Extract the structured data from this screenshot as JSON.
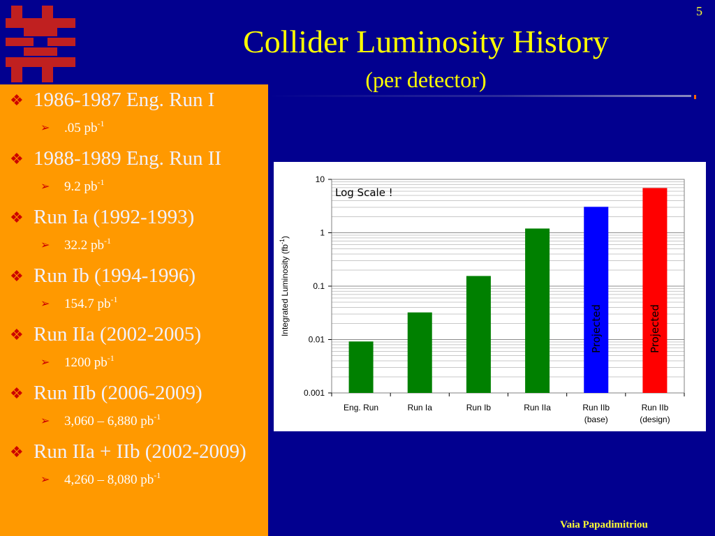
{
  "slide": {
    "number": "5",
    "title": "Collider Luminosity History",
    "subtitle": "(per detector)",
    "author": "Vaia Papadimitriou"
  },
  "colors": {
    "background": "#02008f",
    "panel": "#ff9900",
    "title": "#ffff00",
    "bullet": "#cc0000",
    "bar_green": "#008000",
    "bar_blue": "#0000ff",
    "bar_red": "#ff0000"
  },
  "bullets": [
    {
      "label": "1986-1987 Eng. Run I",
      "value": ".05 pb",
      "unit_sup": "-1"
    },
    {
      "label": "1988-1989 Eng. Run II",
      "value": "9.2 pb",
      "unit_sup": "-1"
    },
    {
      "label": "Run Ia (1992-1993)",
      "value": "32.2 pb",
      "unit_sup": "-1"
    },
    {
      "label": "Run Ib (1994-1996)",
      "value": "154.7 pb",
      "unit_sup": "-1"
    },
    {
      "label": "Run IIa (2002-2005)",
      "value": "1200 pb",
      "unit_sup": "-1"
    },
    {
      "label": "Run IIb (2006-2009)",
      "value": "3,060 – 6,880 pb",
      "unit_sup": "-1"
    },
    {
      "label": "Run IIa + IIb (2002-2009)",
      "value": "4,260 – 8,080 pb",
      "unit_sup": "-1"
    }
  ],
  "chart_data": {
    "type": "bar",
    "yscale": "log",
    "ylim": [
      0.001,
      10
    ],
    "ylabel": "Integrated Luminosity (fb",
    "ylabel_sup": "-1",
    "ylabel_end": ")",
    "yticks": [
      "10",
      "1",
      "0.1",
      "0.01",
      "0.001"
    ],
    "ytick_values": [
      10,
      1,
      0.1,
      0.01,
      0.001
    ],
    "categories": [
      [
        "Eng. Run"
      ],
      [
        "Run Ia"
      ],
      [
        "Run Ib"
      ],
      [
        "Run IIa"
      ],
      [
        "Run IIb",
        "(base)"
      ],
      [
        "Run IIb",
        "(design)"
      ]
    ],
    "values": [
      0.0092,
      0.0322,
      0.155,
      1.2,
      3.06,
      6.88
    ],
    "bar_colors": [
      "#008000",
      "#008000",
      "#008000",
      "#008000",
      "#0000ff",
      "#ff0000"
    ],
    "bar_labels": [
      "",
      "",
      "",
      "",
      "Projected",
      "Projected"
    ],
    "annotation": "Log Scale !",
    "grid": true
  }
}
